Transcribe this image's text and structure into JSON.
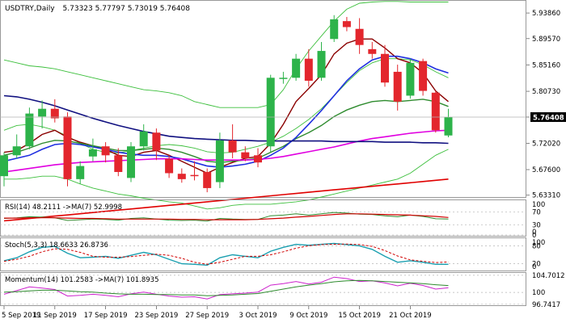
{
  "header": {
    "symbol": "USDTRY,Daily",
    "ohlc": "5.73323 5.77797 5.73019 5.76408"
  },
  "price_axis": {
    "ticks": [
      5.9386,
      5.8957,
      5.8516,
      5.8073,
      5.7641,
      5.7202,
      5.676,
      5.6331
    ],
    "tick_labels": [
      "5.93860",
      "5.89570",
      "5.85160",
      "5.80730",
      "5.76408",
      "5.72020",
      "5.67600",
      "5.63310"
    ],
    "current_price": 5.76408,
    "ylim": [
      5.63,
      5.955
    ]
  },
  "date_axis": {
    "labels": [
      "5 Sep 2019",
      "11 Sep 2019",
      "17 Sep 2019",
      "23 Sep 2019",
      "27 Sep 2019",
      "3 Oct 2019",
      "9 Oct 2019",
      "15 Oct 2019",
      "21 Oct 2019"
    ],
    "label_bar_index": [
      0,
      4,
      8,
      12,
      16,
      20,
      24,
      28,
      32
    ]
  },
  "colors": {
    "up": "#2db34a",
    "down": "#e3262d",
    "bollinger": "#3cbf3c",
    "ma_darkred": "#8b0000",
    "ma_green": "#2e8b2e",
    "ma_blue": "#1f2fe0",
    "ma_magenta": "#e000e0",
    "ma_navy": "#101080",
    "ma_red": "#e00000",
    "rsi_line": "#2e8b2e",
    "rsi_ma": "#d00000",
    "stoch_k": "#1a9fb0",
    "stoch_d": "#d00000",
    "mom_line": "#2e8b2e",
    "mom_ma": "#cc22cc"
  },
  "chart_data": {
    "type": "candlestick",
    "title": "USDTRY,Daily",
    "candles": [
      {
        "d": "5 Sep",
        "o": 5.665,
        "h": 5.705,
        "l": 5.648,
        "c": 5.7
      },
      {
        "d": "6 Sep",
        "o": 5.7,
        "h": 5.735,
        "l": 5.695,
        "c": 5.715
      },
      {
        "d": "9 Sep",
        "o": 5.715,
        "h": 5.78,
        "l": 5.71,
        "c": 5.77
      },
      {
        "d": "10 Sep",
        "o": 5.765,
        "h": 5.792,
        "l": 5.745,
        "c": 5.778
      },
      {
        "d": "11 Sep",
        "o": 5.778,
        "h": 5.794,
        "l": 5.755,
        "c": 5.762
      },
      {
        "d": "12 Sep",
        "o": 5.765,
        "h": 5.772,
        "l": 5.648,
        "c": 5.66
      },
      {
        "d": "13 Sep",
        "o": 5.66,
        "h": 5.69,
        "l": 5.652,
        "c": 5.682
      },
      {
        "d": "16 Sep",
        "o": 5.698,
        "h": 5.728,
        "l": 5.69,
        "c": 5.71
      },
      {
        "d": "17 Sep",
        "o": 5.715,
        "h": 5.722,
        "l": 5.688,
        "c": 5.7
      },
      {
        "d": "18 Sep",
        "o": 5.7,
        "h": 5.712,
        "l": 5.665,
        "c": 5.672
      },
      {
        "d": "19 Sep",
        "o": 5.662,
        "h": 5.722,
        "l": 5.655,
        "c": 5.715
      },
      {
        "d": "20 Sep",
        "o": 5.715,
        "h": 5.752,
        "l": 5.708,
        "c": 5.74
      },
      {
        "d": "23 Sep",
        "o": 5.738,
        "h": 5.745,
        "l": 5.692,
        "c": 5.708
      },
      {
        "d": "24 Sep",
        "o": 5.694,
        "h": 5.7,
        "l": 5.662,
        "c": 5.67
      },
      {
        "d": "25 Sep",
        "o": 5.669,
        "h": 5.678,
        "l": 5.654,
        "c": 5.66
      },
      {
        "d": "26 Sep",
        "o": 5.667,
        "h": 5.69,
        "l": 5.658,
        "c": 5.665
      },
      {
        "d": "27 Sep",
        "o": 5.672,
        "h": 5.678,
        "l": 5.638,
        "c": 5.645
      },
      {
        "d": "30 Sep",
        "o": 5.655,
        "h": 5.738,
        "l": 5.645,
        "c": 5.725
      },
      {
        "d": "1 Oct",
        "o": 5.725,
        "h": 5.752,
        "l": 5.695,
        "c": 5.705
      },
      {
        "d": "2 Oct",
        "o": 5.705,
        "h": 5.715,
        "l": 5.69,
        "c": 5.695
      },
      {
        "d": "3 Oct",
        "o": 5.7,
        "h": 5.712,
        "l": 5.68,
        "c": 5.688
      },
      {
        "d": "4 Oct",
        "o": 5.715,
        "h": 5.835,
        "l": 5.705,
        "c": 5.83
      },
      {
        "d": "7 Oct",
        "o": 5.83,
        "h": 5.84,
        "l": 5.82,
        "c": 5.83
      },
      {
        "d": "8 Oct",
        "o": 5.83,
        "h": 5.87,
        "l": 5.825,
        "c": 5.862
      },
      {
        "d": "9 Oct",
        "o": 5.862,
        "h": 5.878,
        "l": 5.815,
        "c": 5.825
      },
      {
        "d": "10 Oct",
        "o": 5.83,
        "h": 5.89,
        "l": 5.825,
        "c": 5.875
      },
      {
        "d": "11 Oct",
        "o": 5.895,
        "h": 5.935,
        "l": 5.89,
        "c": 5.928
      },
      {
        "d": "14 Oct",
        "o": 5.925,
        "h": 5.932,
        "l": 5.908,
        "c": 5.915
      },
      {
        "d": "15 Oct",
        "o": 5.912,
        "h": 5.93,
        "l": 5.87,
        "c": 5.885
      },
      {
        "d": "16 Oct",
        "o": 5.878,
        "h": 5.89,
        "l": 5.862,
        "c": 5.87
      },
      {
        "d": "17 Oct",
        "o": 5.87,
        "h": 5.885,
        "l": 5.815,
        "c": 5.822
      },
      {
        "d": "18 Oct",
        "o": 5.84,
        "h": 5.852,
        "l": 5.775,
        "c": 5.79
      },
      {
        "d": "21 Oct",
        "o": 5.8,
        "h": 5.862,
        "l": 5.795,
        "c": 5.855
      },
      {
        "d": "22 Oct",
        "o": 5.858,
        "h": 5.862,
        "l": 5.8,
        "c": 5.808
      },
      {
        "d": "23 Oct",
        "o": 5.805,
        "h": 5.808,
        "l": 5.738,
        "c": 5.742
      },
      {
        "d": "24 Oct",
        "o": 5.73323,
        "h": 5.77797,
        "l": 5.73019,
        "c": 5.76408
      }
    ],
    "overlays": [
      {
        "key": "bb_upper",
        "values": [
          5.86,
          5.855,
          5.85,
          5.848,
          5.845,
          5.84,
          5.835,
          5.83,
          5.825,
          5.82,
          5.815,
          5.81,
          5.808,
          5.805,
          5.8,
          5.79,
          5.785,
          5.78,
          5.78,
          5.78,
          5.78,
          5.785,
          5.81,
          5.845,
          5.875,
          5.9,
          5.925,
          5.945,
          5.955,
          5.957,
          5.958,
          5.958,
          5.957,
          5.957,
          5.957,
          5.957
        ]
      },
      {
        "key": "bb_lower",
        "values": [
          5.66,
          5.66,
          5.662,
          5.665,
          5.665,
          5.66,
          5.652,
          5.645,
          5.64,
          5.635,
          5.632,
          5.628,
          5.625,
          5.622,
          5.62,
          5.615,
          5.61,
          5.612,
          5.616,
          5.618,
          5.618,
          5.618,
          5.62,
          5.622,
          5.625,
          5.63,
          5.635,
          5.64,
          5.645,
          5.65,
          5.655,
          5.66,
          5.67,
          5.685,
          5.7,
          5.71
        ]
      },
      {
        "key": "bb_mid",
        "values": [
          5.742,
          5.75,
          5.752,
          5.748,
          5.742,
          5.732,
          5.72,
          5.71,
          5.705,
          5.704,
          5.708,
          5.712,
          5.716,
          5.718,
          5.716,
          5.712,
          5.706,
          5.704,
          5.705,
          5.71,
          5.715,
          5.722,
          5.732,
          5.745,
          5.76,
          5.778,
          5.8,
          5.822,
          5.842,
          5.855,
          5.862,
          5.862,
          5.86,
          5.852,
          5.84,
          5.83
        ]
      },
      {
        "key": "ma_darkred",
        "values": [
          5.705,
          5.708,
          5.72,
          5.735,
          5.742,
          5.73,
          5.722,
          5.716,
          5.71,
          5.7,
          5.698,
          5.705,
          5.708,
          5.7,
          5.69,
          5.68,
          5.67,
          5.68,
          5.688,
          5.695,
          5.698,
          5.72,
          5.752,
          5.79,
          5.812,
          5.835,
          5.87,
          5.888,
          5.895,
          5.895,
          5.88,
          5.862,
          5.855,
          5.838,
          5.808,
          5.79
        ]
      },
      {
        "key": "ma_green",
        "values": [
          5.7,
          5.705,
          5.712,
          5.72,
          5.725,
          5.724,
          5.72,
          5.716,
          5.712,
          5.708,
          5.708,
          5.71,
          5.712,
          5.71,
          5.705,
          5.698,
          5.69,
          5.688,
          5.69,
          5.692,
          5.695,
          5.705,
          5.715,
          5.728,
          5.738,
          5.75,
          5.765,
          5.776,
          5.784,
          5.79,
          5.792,
          5.79,
          5.792,
          5.794,
          5.79,
          5.782
        ]
      },
      {
        "key": "ma_blue",
        "values": [
          5.69,
          5.695,
          5.7,
          5.71,
          5.718,
          5.72,
          5.718,
          5.714,
          5.71,
          5.705,
          5.702,
          5.7,
          5.7,
          5.698,
          5.694,
          5.688,
          5.682,
          5.68,
          5.682,
          5.685,
          5.69,
          5.7,
          5.712,
          5.73,
          5.752,
          5.775,
          5.8,
          5.825,
          5.845,
          5.86,
          5.866,
          5.866,
          5.862,
          5.855,
          5.845,
          5.838
        ]
      },
      {
        "key": "ma_magenta",
        "values": [
          5.672,
          5.675,
          5.678,
          5.681,
          5.684,
          5.686,
          5.688,
          5.689,
          5.69,
          5.691,
          5.692,
          5.693,
          5.694,
          5.694,
          5.694,
          5.693,
          5.692,
          5.692,
          5.692,
          5.692,
          5.693,
          5.695,
          5.698,
          5.702,
          5.706,
          5.71,
          5.714,
          5.719,
          5.724,
          5.728,
          5.731,
          5.734,
          5.737,
          5.739,
          5.741,
          5.742
        ]
      },
      {
        "key": "ma_navy",
        "values": [
          5.8,
          5.798,
          5.794,
          5.789,
          5.783,
          5.776,
          5.769,
          5.762,
          5.756,
          5.75,
          5.745,
          5.74,
          5.736,
          5.732,
          5.73,
          5.728,
          5.727,
          5.726,
          5.725,
          5.725,
          5.724,
          5.724,
          5.724,
          5.724,
          5.724,
          5.724,
          5.723,
          5.723,
          5.723,
          5.723,
          5.722,
          5.722,
          5.722,
          5.721,
          5.721,
          5.72
        ]
      },
      {
        "key": "ma_red",
        "values": [
          5.59,
          5.592,
          5.594,
          5.596,
          5.598,
          5.6,
          5.602,
          5.604,
          5.606,
          5.608,
          5.61,
          5.612,
          5.614,
          5.616,
          5.618,
          5.62,
          5.622,
          5.624,
          5.626,
          5.628,
          5.63,
          5.632,
          5.634,
          5.636,
          5.638,
          5.64,
          5.642,
          5.644,
          5.646,
          5.648,
          5.65,
          5.652,
          5.654,
          5.656,
          5.658,
          5.66
        ]
      }
    ],
    "indicators": {
      "rsi": {
        "label": "RSI(14) 48.2111 ->MA(7) 52.9998",
        "ticks": [
          70,
          30,
          0
        ],
        "tick_labels": [
          "70",
          "30",
          "0"
        ],
        "scale_labels": [
          "100",
          "0"
        ],
        "ylim": [
          0,
          100
        ],
        "rsi": [
          50,
          52,
          55,
          54,
          52,
          44,
          46,
          48,
          47,
          45,
          50,
          52,
          48,
          45,
          44,
          45,
          42,
          50,
          48,
          47,
          47,
          58,
          60,
          64,
          60,
          64,
          68,
          66,
          63,
          62,
          58,
          55,
          60,
          56,
          49,
          48
        ],
        "ma": [
          51,
          51,
          52,
          52,
          52,
          51,
          50,
          50,
          49,
          48,
          48,
          48,
          48,
          48,
          47,
          47,
          46,
          46,
          46,
          46,
          47,
          49,
          51,
          54,
          56,
          59,
          62,
          64,
          64,
          63,
          62,
          61,
          60,
          58,
          56,
          53
        ]
      },
      "stoch": {
        "label": "Stoch(5,3,3) 18.6633 26.8736",
        "ticks": [
          80,
          20
        ],
        "tick_labels": [
          "80",
          "20"
        ],
        "scale_labels": [
          "100",
          "0"
        ],
        "ylim": [
          0,
          100
        ],
        "k": [
          30,
          40,
          60,
          75,
          78,
          55,
          40,
          42,
          45,
          38,
          48,
          58,
          50,
          35,
          20,
          18,
          15,
          40,
          50,
          45,
          40,
          62,
          75,
          85,
          82,
          85,
          88,
          84,
          80,
          68,
          45,
          25,
          30,
          25,
          18,
          18
        ],
        "d": [
          28,
          35,
          45,
          60,
          70,
          68,
          58,
          45,
          42,
          42,
          44,
          48,
          52,
          48,
          38,
          25,
          18,
          25,
          35,
          45,
          45,
          50,
          60,
          72,
          80,
          84,
          85,
          86,
          84,
          78,
          64,
          46,
          33,
          28,
          24,
          26
        ]
      },
      "momentum": {
        "label": "Momentum(14) 101.2583 ->MA(7) 101.8935",
        "ticks": [
          104.7012,
          100,
          96.7417
        ],
        "tick_labels": [
          "104.7012",
          "100",
          "96.7417"
        ],
        "ylim": [
          96.7,
          104.9
        ],
        "mom": [
          99.5,
          100.5,
          101.5,
          101.2,
          100.8,
          99.0,
          99.2,
          99.5,
          99.2,
          98.8,
          99.6,
          100.1,
          99.5,
          99.0,
          98.7,
          98.8,
          98.2,
          99.4,
          99.6,
          99.8,
          100.1,
          102.0,
          102.4,
          103.0,
          102.3,
          102.8,
          104.2,
          103.8,
          103.0,
          103.2,
          102.6,
          101.8,
          102.5,
          101.9,
          100.9,
          101.26
        ],
        "ma": [
          100.1,
          100.2,
          100.4,
          100.6,
          100.6,
          100.4,
          100.2,
          100.1,
          99.8,
          99.6,
          99.5,
          99.5,
          99.4,
          99.4,
          99.3,
          99.3,
          99.1,
          99.2,
          99.3,
          99.5,
          99.7,
          100.3,
          100.9,
          101.5,
          102.0,
          102.4,
          102.9,
          103.2,
          103.3,
          103.2,
          103.0,
          102.8,
          102.6,
          102.4,
          102.1,
          101.89
        ]
      }
    }
  }
}
